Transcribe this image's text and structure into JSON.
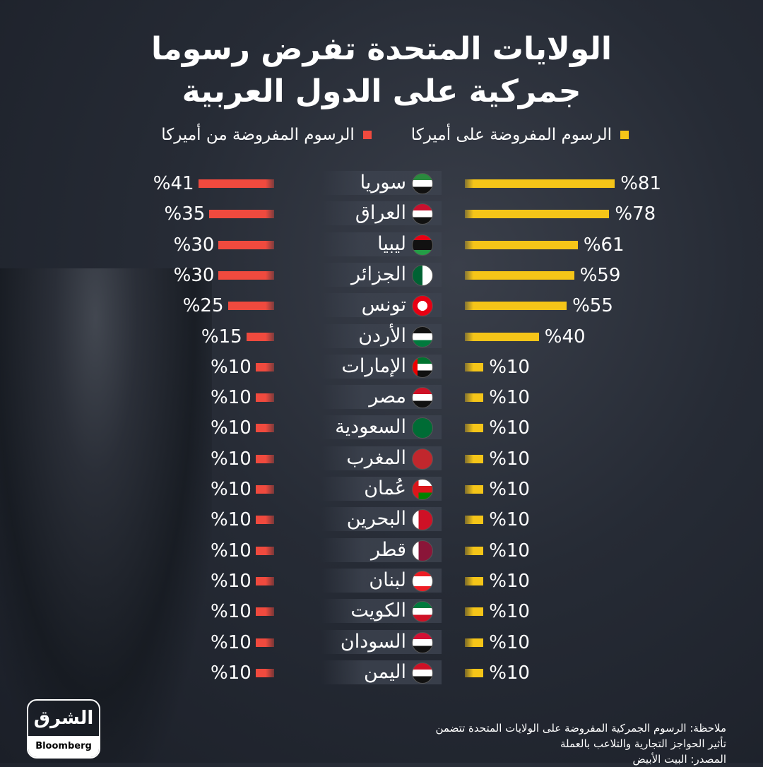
{
  "title_lines": [
    "الولايات المتحدة تفرض رسوما",
    "جمركية على الدول العربية"
  ],
  "legend": [
    {
      "label": "الرسوم المفروضة على أميركا",
      "color": "#f5c518"
    },
    {
      "label": "الرسوم المفروضة من أميركا",
      "color": "#f04a3e"
    }
  ],
  "chart_data": {
    "type": "bar",
    "categories": [
      "سوريا",
      "العراق",
      "ليبيا",
      "الجزائر",
      "تونس",
      "الأردن",
      "الإمارات",
      "مصر",
      "السعودية",
      "المغرب",
      "عُمان",
      "البحرين",
      "قطر",
      "لبنان",
      "الكويت",
      "السودان",
      "اليمن"
    ],
    "series": [
      {
        "name": "الرسوم المفروضة على أميركا",
        "color": "#f5c518",
        "values": [
          81,
          78,
          61,
          59,
          55,
          40,
          10,
          10,
          10,
          10,
          10,
          10,
          10,
          10,
          10,
          10,
          10
        ],
        "labels": [
          "%81",
          "%78",
          "%61",
          "%59",
          "%55",
          "%40",
          "%10",
          "%10",
          "%10",
          "%10",
          "%10",
          "%10",
          "%10",
          "%10",
          "%10",
          "%10",
          "%10"
        ]
      },
      {
        "name": "الرسوم المفروضة من أميركا",
        "color": "#f04a3e",
        "values": [
          41,
          35,
          30,
          30,
          25,
          15,
          10,
          10,
          10,
          10,
          10,
          10,
          10,
          10,
          10,
          10,
          10
        ],
        "labels": [
          "%41",
          "%35",
          "%30",
          "%30",
          "%25",
          "%15",
          "%10",
          "%10",
          "%10",
          "%10",
          "%10",
          "%10",
          "%10",
          "%10",
          "%10",
          "%10",
          "%10"
        ]
      }
    ],
    "flags": [
      "syria-flag",
      "iraq-flag",
      "libya-flag",
      "algeria-flag",
      "tunisia-flag",
      "jordan-flag",
      "uae-flag",
      "egypt-flag",
      "saudi-flag",
      "morocco-flag",
      "oman-flag",
      "bahrain-flag",
      "qatar-flag",
      "lebanon-flag",
      "kuwait-flag",
      "sudan-flag",
      "yemen-flag"
    ],
    "unit": "%"
  },
  "note_lines": [
    "ملاحظة: الرسوم الجمركية المفروضة على الولايات المتحدة تتضمن",
    "تأثير الحواجز التجارية والتلاعب بالعملة",
    "المصدر: البيت الأبيض"
  ],
  "logo": {
    "arabic": "الشرق",
    "english": "Bloomberg"
  }
}
